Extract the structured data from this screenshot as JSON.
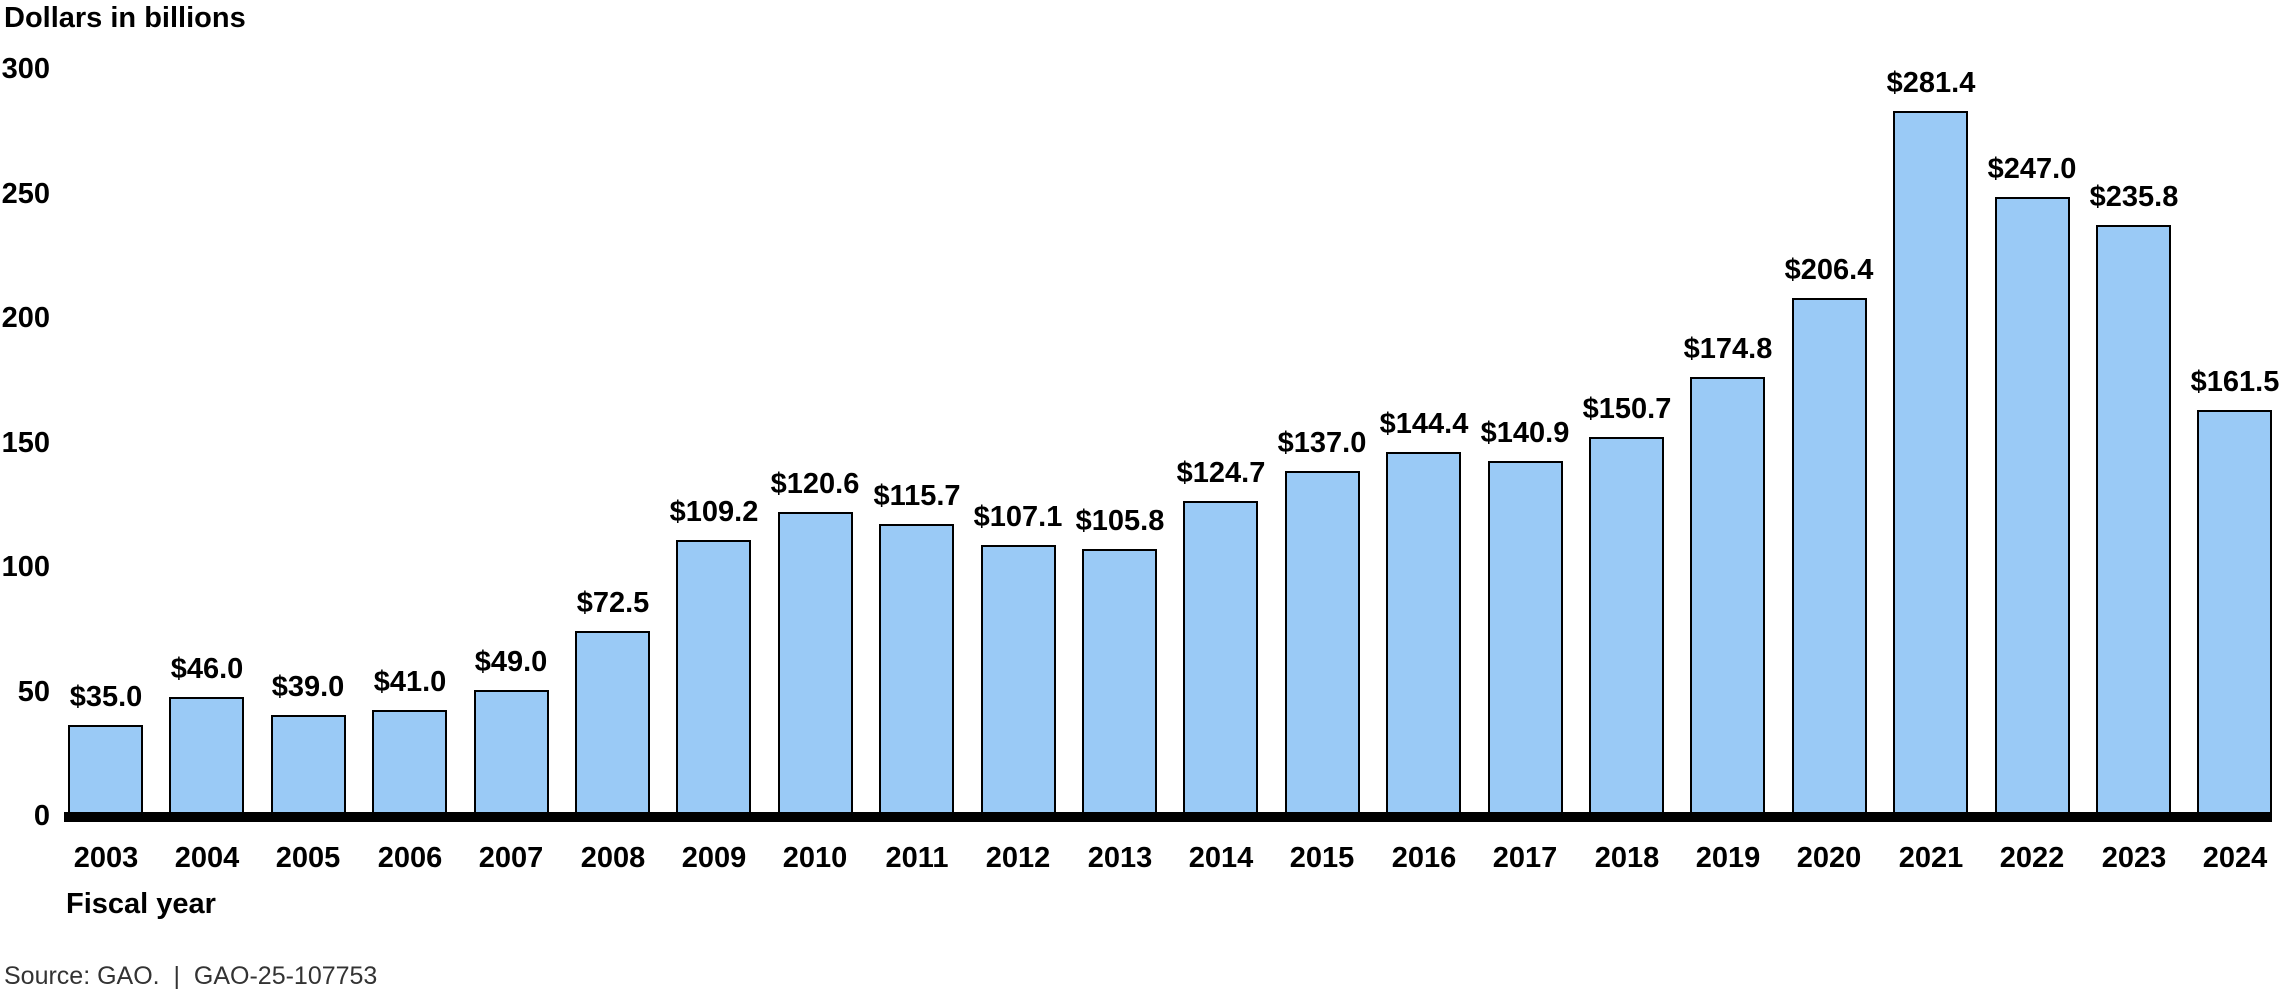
{
  "chart_data": {
    "type": "bar",
    "title": "Dollars in billions",
    "xlabel": "Fiscal year",
    "ylabel": "Dollars in billions",
    "categories": [
      "2003",
      "2004",
      "2005",
      "2006",
      "2007",
      "2008",
      "2009",
      "2010",
      "2011",
      "2012",
      "2013",
      "2014",
      "2015",
      "2016",
      "2017",
      "2018",
      "2019",
      "2020",
      "2021",
      "2022",
      "2023",
      "2024"
    ],
    "values": [
      35.0,
      46.0,
      39.0,
      41.0,
      49.0,
      72.5,
      109.2,
      120.6,
      115.7,
      107.1,
      105.8,
      124.7,
      137.0,
      144.4,
      140.9,
      150.7,
      174.8,
      206.4,
      281.4,
      247.0,
      235.8,
      161.5
    ],
    "bar_labels": [
      "$35.0",
      "$46.0",
      "$39.0",
      "$41.0",
      "$49.0",
      "$72.5",
      "$109.2",
      "$120.6",
      "$115.7",
      "$107.1",
      "$105.8",
      "$124.7",
      "$137.0",
      "$144.4",
      "$140.9",
      "$150.7",
      "$174.8",
      "$206.4",
      "$281.4",
      "$247.0",
      "$235.8",
      "$161.5"
    ],
    "y_ticks": [
      "300",
      "250",
      "200",
      "150",
      "100",
      "50",
      "0"
    ],
    "y_tick_values": [
      300,
      250,
      200,
      150,
      100,
      50,
      0
    ],
    "ylim": [
      0,
      300
    ],
    "grid": "off",
    "legend": "none",
    "bar_color": "#9ACAF6",
    "bar_border_color": "#000000",
    "axis_line_color": "#000000",
    "text_color": "#000000"
  },
  "footer": {
    "source_text": "Source: GAO.  |  GAO-25-107753"
  }
}
